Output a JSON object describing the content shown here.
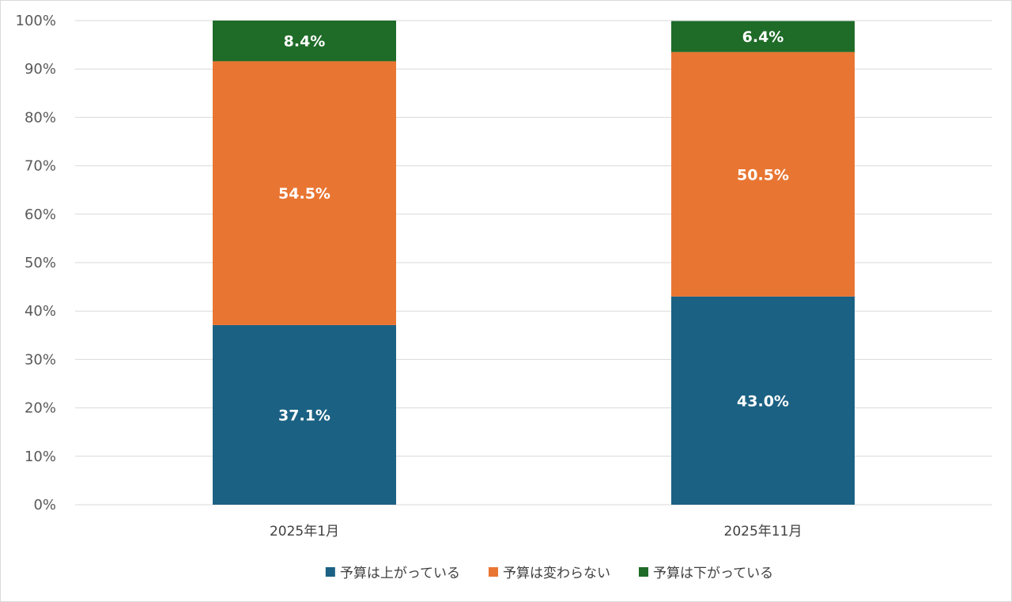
{
  "chart_data": {
    "type": "bar",
    "stacked": true,
    "categories": [
      "2025年1月",
      "2025年11月"
    ],
    "series": [
      {
        "name": "予算は上がっている",
        "values": [
          37.1,
          43.0
        ],
        "labels": [
          "37.1%",
          "43.0%"
        ],
        "color": "#1b6183"
      },
      {
        "name": "予算は変わらない",
        "values": [
          54.5,
          50.5
        ],
        "labels": [
          "54.5%",
          "50.5%"
        ],
        "color": "#e97532"
      },
      {
        "name": "予算は下がっている",
        "values": [
          8.4,
          6.4
        ],
        "labels": [
          "8.4%",
          "6.4%"
        ],
        "color": "#1f6b28"
      }
    ],
    "title": "",
    "xlabel": "",
    "ylabel": "",
    "ylim": [
      0,
      100
    ],
    "yticks": [
      0,
      10,
      20,
      30,
      40,
      50,
      60,
      70,
      80,
      90,
      100
    ],
    "ytick_labels": [
      "0%",
      "10%",
      "20%",
      "30%",
      "40%",
      "50%",
      "60%",
      "70%",
      "80%",
      "90%",
      "100%"
    ],
    "grid": true,
    "legend_position": "bottom"
  }
}
